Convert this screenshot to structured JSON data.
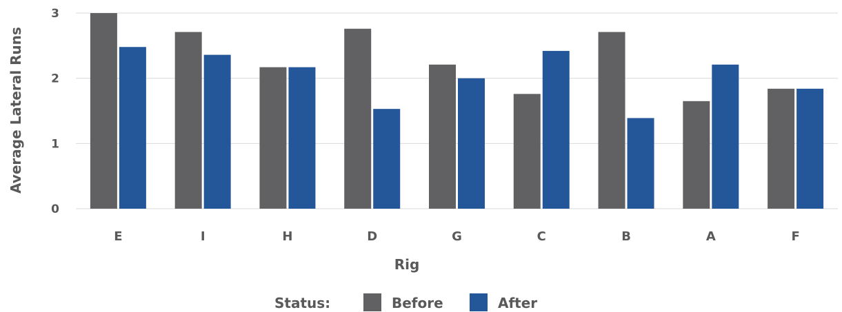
{
  "chart_data": {
    "type": "bar",
    "title": "",
    "xlabel": "Rig",
    "ylabel": "Average Lateral Runs",
    "categories": [
      "E",
      "I",
      "H",
      "D",
      "G",
      "C",
      "B",
      "A",
      "F"
    ],
    "series": [
      {
        "name": "Before",
        "color": "#616163",
        "values": [
          3.0,
          2.71,
          2.17,
          2.76,
          2.21,
          1.76,
          2.71,
          1.65,
          1.84
        ]
      },
      {
        "name": "After",
        "color": "#24579a",
        "values": [
          2.48,
          2.36,
          2.17,
          1.53,
          2.0,
          2.42,
          1.39,
          2.21,
          1.84
        ]
      }
    ],
    "ylim": [
      0,
      3
    ],
    "yticks": [
      "0",
      "1",
      "2",
      "3"
    ],
    "grid": true,
    "legend": {
      "title": "Status:",
      "placement": "bottom-center"
    }
  }
}
